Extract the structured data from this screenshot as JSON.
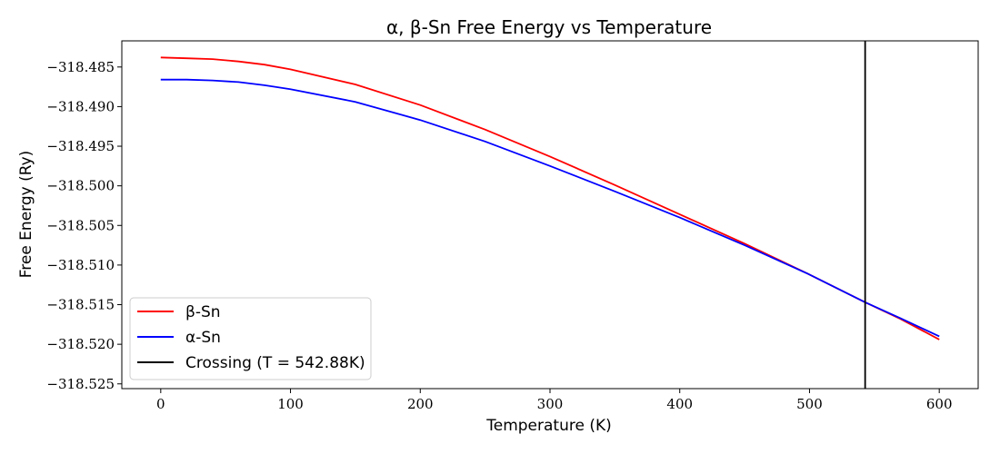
{
  "chart_data": {
    "type": "line",
    "title": "α, β-Sn Free Energy vs Temperature",
    "xlabel": "Temperature (K)",
    "ylabel": "Free Energy (Ry)",
    "xlim": [
      -30,
      630
    ],
    "ylim": [
      -318.5256,
      -318.4817
    ],
    "x_ticks": [
      0,
      100,
      200,
      300,
      400,
      500,
      600
    ],
    "x_tick_labels": [
      "0",
      "100",
      "200",
      "300",
      "400",
      "500",
      "600"
    ],
    "y_ticks": [
      -318.485,
      -318.49,
      -318.495,
      -318.5,
      -318.505,
      -318.51,
      -318.515,
      -318.52,
      -318.525
    ],
    "y_tick_labels": [
      "−318.485",
      "−318.490",
      "−318.495",
      "−318.500",
      "−318.505",
      "−318.510",
      "−318.515",
      "−318.520",
      "−318.525"
    ],
    "grid": false,
    "legend_position": "lower-left",
    "x": [
      0,
      20,
      40,
      60,
      80,
      100,
      150,
      200,
      250,
      300,
      350,
      400,
      450,
      500,
      542.88,
      570,
      600
    ],
    "series": [
      {
        "name": "β-Sn",
        "color": "#ff0000",
        "values": [
          -318.4838,
          -318.4839,
          -318.484,
          -318.4843,
          -318.4847,
          -318.4853,
          -318.4872,
          -318.4898,
          -318.4929,
          -318.4963,
          -318.4999,
          -318.5036,
          -318.5073,
          -318.5112,
          -318.5147,
          -318.5168,
          -318.5194
        ]
      },
      {
        "name": "α-Sn",
        "color": "#0000ff",
        "values": [
          -318.4866,
          -318.4866,
          -318.4867,
          -318.4869,
          -318.4873,
          -318.4878,
          -318.4894,
          -318.4917,
          -318.4944,
          -318.4975,
          -318.5007,
          -318.504,
          -318.5075,
          -318.5112,
          -318.5147,
          -318.5167,
          -318.519
        ]
      }
    ],
    "vertical_line": {
      "name": "Crossing (T = 542.88K)",
      "x": 542.88,
      "color": "#000000"
    }
  }
}
